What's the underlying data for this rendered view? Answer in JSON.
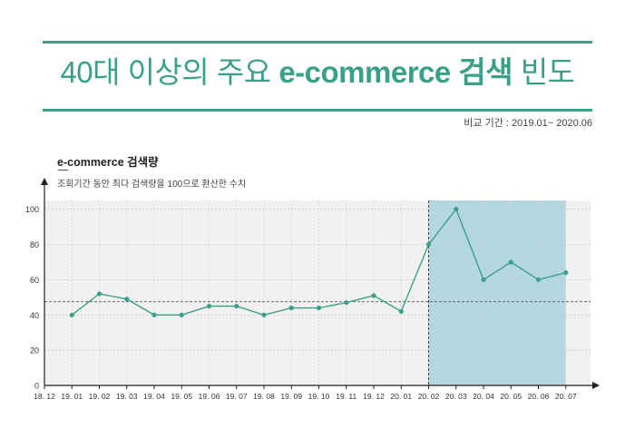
{
  "header": {
    "title_main": "40대 이상의 주요",
    "title_accent": "e-commerce 검색",
    "title_end": "빈도",
    "period": "비교 기간 : 2019.01~ 2020.06"
  },
  "colors": {
    "accent": "#3aa188",
    "highlight": "#a9d2de",
    "line": "#3aa188"
  },
  "chart_data": {
    "type": "line",
    "title": "e-commerce 검색량",
    "subtitle": "조회기간 동안 최다 검색량을 100으로 환산한 수치",
    "xlabel": "",
    "ylabel": "",
    "categories": [
      "18. 12",
      "19. 01",
      "19. 02",
      "19. 03",
      "19. 04",
      "19. 05",
      "19. 06",
      "19. 07",
      "19. 08",
      "19. 09",
      "19. 10",
      "19. 11",
      "19. 12",
      "20. 01",
      "20. 02",
      "20. 03",
      "20. 04",
      "20. 05",
      "20. 06",
      "20. 07"
    ],
    "series": [
      {
        "values": [
          null,
          40,
          52,
          49,
          40,
          40,
          45,
          45,
          40,
          44,
          44,
          47,
          51,
          42,
          80,
          100,
          60,
          70,
          60,
          64
        ]
      }
    ],
    "reference_lines": [
      {
        "axis": "y",
        "value": 47.5
      },
      {
        "axis": "x",
        "value": "20. 02"
      }
    ],
    "highlight_range": [
      "20. 02",
      "20. 07"
    ],
    "yticks": [
      0,
      20,
      40,
      60,
      80,
      100
    ],
    "ylim": [
      0,
      105
    ],
    "grid": true,
    "legend": "none"
  }
}
